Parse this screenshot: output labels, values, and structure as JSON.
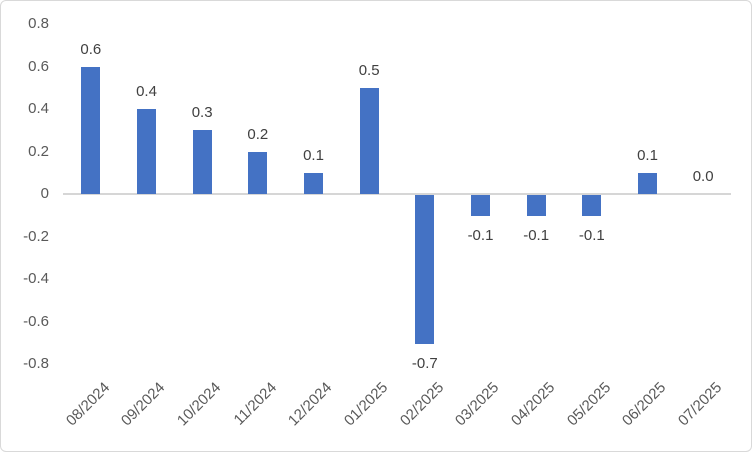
{
  "chart": {
    "bar_color": "#4472C4",
    "axis_line_color": "#d6d6d6",
    "tick_label_color": "#595959",
    "data_label_color": "#404040",
    "border_color": "#d9d9d9"
  },
  "chart_data": {
    "type": "bar",
    "title": "",
    "xlabel": "",
    "ylabel": "",
    "categories": [
      "08/2024",
      "09/2024",
      "10/2024",
      "11/2024",
      "12/2024",
      "01/2025",
      "02/2025",
      "03/2025",
      "04/2025",
      "05/2025",
      "06/2025",
      "07/2025"
    ],
    "values": [
      0.6,
      0.4,
      0.3,
      0.2,
      0.1,
      0.5,
      -0.7,
      -0.1,
      -0.1,
      -0.1,
      0.1,
      0.0
    ],
    "data_labels": [
      "0.6",
      "0.4",
      "0.3",
      "0.2",
      "0.1",
      "0.5",
      "-0.7",
      "-0.1",
      "-0.1",
      "-0.1",
      "0.1",
      "0.0"
    ],
    "ylim": [
      -0.8,
      0.8
    ],
    "ytick_step": 0.2,
    "yticks": [
      "0.8",
      "0.6",
      "0.4",
      "0.2",
      "0",
      "-0.2",
      "-0.4",
      "-0.6",
      "-0.8"
    ],
    "grid": false,
    "legend": false,
    "data_labels_shown": true
  }
}
